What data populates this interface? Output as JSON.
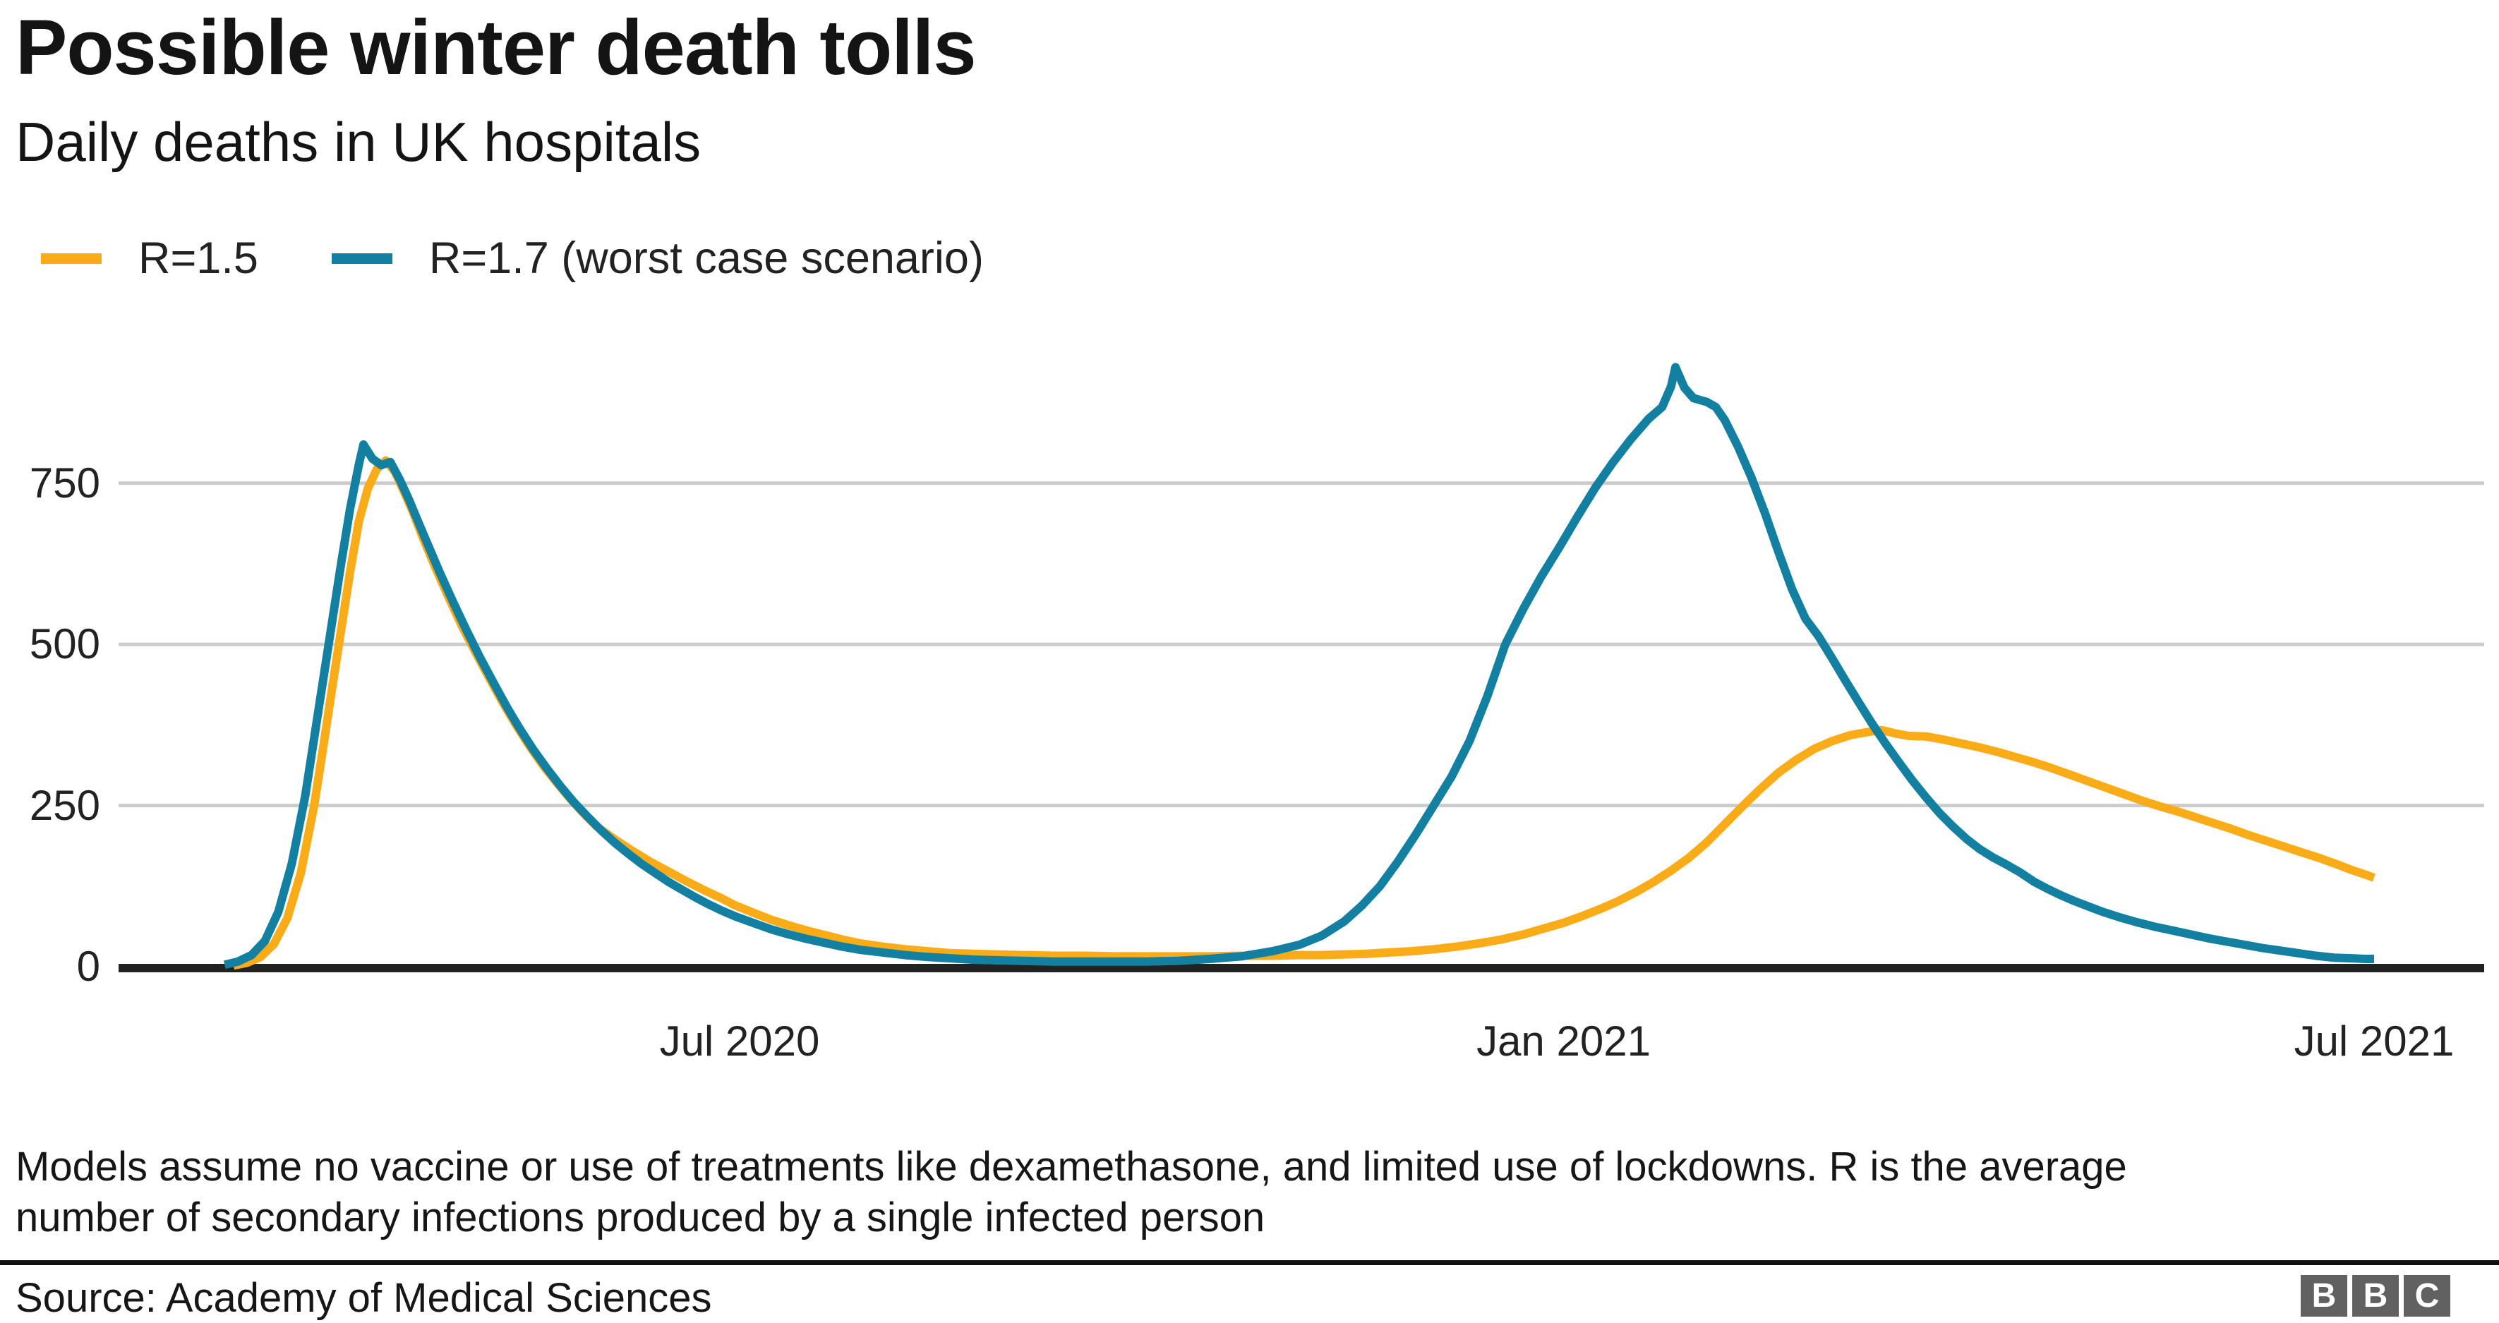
{
  "header": {
    "title": "Possible winter death tolls",
    "subtitle": "Daily deaths in UK hospitals"
  },
  "legend": [
    {
      "label": "R=1.5",
      "color": "#FAAB18"
    },
    {
      "label": "R=1.7 (worst case scenario)",
      "color": "#1380A1"
    }
  ],
  "footnote": {
    "line1": "Models assume no vaccine or use of treatments like dexamethasone, and limited use of lockdowns. R is the average",
    "line2": "number of secondary infections produced by a single infected person"
  },
  "source": {
    "label": "Source: Academy of Medical Sciences"
  },
  "logo": {
    "letters": [
      "B",
      "B",
      "C"
    ]
  },
  "colors": {
    "grid": "#cccccc",
    "axis": "#222222",
    "text": "#222222",
    "logo_background": "#616161"
  },
  "chart_data": {
    "type": "line",
    "title": "Possible winter death tolls",
    "subtitle": "Daily deaths in UK hospitals",
    "xlabel": "",
    "ylabel": "",
    "ylim": [
      0,
      950
    ],
    "yticks": [
      0,
      250,
      500,
      750
    ],
    "xticks": [
      {
        "date": "2020-07-01",
        "label": "Jul 2020"
      },
      {
        "date": "2021-01-01",
        "label": "Jan 2021"
      },
      {
        "date": "2021-07-01",
        "label": "Jul 2021"
      }
    ],
    "grid": "horizontal",
    "legend_position": "top-left",
    "series": [
      {
        "name": "R=1.5",
        "color": "#FAAB18",
        "points": [
          [
            "2020-03-10",
            2
          ],
          [
            "2020-03-13",
            6
          ],
          [
            "2020-03-16",
            15
          ],
          [
            "2020-03-19",
            35
          ],
          [
            "2020-03-22",
            75
          ],
          [
            "2020-03-25",
            145
          ],
          [
            "2020-03-28",
            250
          ],
          [
            "2020-03-30",
            340
          ],
          [
            "2020-04-01",
            432
          ],
          [
            "2020-04-03",
            522
          ],
          [
            "2020-04-05",
            612
          ],
          [
            "2020-04-07",
            692
          ],
          [
            "2020-04-09",
            742
          ],
          [
            "2020-04-11",
            772
          ],
          [
            "2020-04-13",
            785
          ],
          [
            "2020-04-15",
            768
          ],
          [
            "2020-04-17",
            738
          ],
          [
            "2020-04-19",
            706
          ],
          [
            "2020-04-21",
            670
          ],
          [
            "2020-04-24",
            620
          ],
          [
            "2020-04-27",
            573
          ],
          [
            "2020-04-30",
            528
          ],
          [
            "2020-05-03",
            488
          ],
          [
            "2020-05-06",
            449
          ],
          [
            "2020-05-09",
            411
          ],
          [
            "2020-05-12",
            376
          ],
          [
            "2020-05-15",
            343
          ],
          [
            "2020-05-18",
            313
          ],
          [
            "2020-05-21",
            287
          ],
          [
            "2020-05-24",
            262
          ],
          [
            "2020-05-27",
            239
          ],
          [
            "2020-05-30",
            218
          ],
          [
            "2020-06-03",
            198
          ],
          [
            "2020-06-07",
            180
          ],
          [
            "2020-06-11",
            163
          ],
          [
            "2020-06-15",
            148
          ],
          [
            "2020-06-19",
            133
          ],
          [
            "2020-06-23",
            119
          ],
          [
            "2020-06-27",
            106
          ],
          [
            "2020-06-30",
            95
          ],
          [
            "2020-07-04",
            84
          ],
          [
            "2020-07-08",
            73
          ],
          [
            "2020-07-12",
            64
          ],
          [
            "2020-07-16",
            56
          ],
          [
            "2020-07-20",
            49
          ],
          [
            "2020-07-24",
            42
          ],
          [
            "2020-07-28",
            36
          ],
          [
            "2020-08-02",
            31
          ],
          [
            "2020-08-07",
            27
          ],
          [
            "2020-08-12",
            24
          ],
          [
            "2020-08-17",
            21
          ],
          [
            "2020-08-22",
            20
          ],
          [
            "2020-08-27",
            19
          ],
          [
            "2020-09-02",
            18
          ],
          [
            "2020-09-09",
            17
          ],
          [
            "2020-09-16",
            17
          ],
          [
            "2020-09-23",
            16
          ],
          [
            "2020-09-30",
            16
          ],
          [
            "2020-10-07",
            16
          ],
          [
            "2020-10-14",
            16
          ],
          [
            "2020-10-21",
            17
          ],
          [
            "2020-10-28",
            17
          ],
          [
            "2020-11-03",
            18
          ],
          [
            "2020-11-08",
            18
          ],
          [
            "2020-11-13",
            19
          ],
          [
            "2020-11-18",
            20
          ],
          [
            "2020-11-23",
            22
          ],
          [
            "2020-11-28",
            24
          ],
          [
            "2020-12-03",
            27
          ],
          [
            "2020-12-08",
            31
          ],
          [
            "2020-12-13",
            36
          ],
          [
            "2020-12-18",
            42
          ],
          [
            "2020-12-23",
            50
          ],
          [
            "2020-12-28",
            60
          ],
          [
            "2021-01-01",
            68
          ],
          [
            "2021-01-05",
            78
          ],
          [
            "2021-01-09",
            89
          ],
          [
            "2021-01-13",
            101
          ],
          [
            "2021-01-17",
            115
          ],
          [
            "2021-01-21",
            131
          ],
          [
            "2021-01-25",
            149
          ],
          [
            "2021-01-29",
            169
          ],
          [
            "2021-02-02",
            193
          ],
          [
            "2021-02-06",
            221
          ],
          [
            "2021-02-10",
            249
          ],
          [
            "2021-02-14",
            276
          ],
          [
            "2021-02-18",
            301
          ],
          [
            "2021-02-22",
            321
          ],
          [
            "2021-02-26",
            338
          ],
          [
            "2021-03-02",
            350
          ],
          [
            "2021-03-06",
            359
          ],
          [
            "2021-03-10",
            364
          ],
          [
            "2021-03-13",
            367
          ],
          [
            "2021-03-16",
            362
          ],
          [
            "2021-03-19",
            358
          ],
          [
            "2021-03-23",
            357
          ],
          [
            "2021-03-27",
            352
          ],
          [
            "2021-03-31",
            346
          ],
          [
            "2021-04-04",
            340
          ],
          [
            "2021-04-08",
            333
          ],
          [
            "2021-04-12",
            325
          ],
          [
            "2021-04-16",
            317
          ],
          [
            "2021-04-20",
            308
          ],
          [
            "2021-04-24",
            298
          ],
          [
            "2021-04-28",
            288
          ],
          [
            "2021-05-02",
            278
          ],
          [
            "2021-05-06",
            268
          ],
          [
            "2021-05-10",
            258
          ],
          [
            "2021-05-14",
            249
          ],
          [
            "2021-05-18",
            241
          ],
          [
            "2021-05-22",
            232
          ],
          [
            "2021-05-26",
            223
          ],
          [
            "2021-05-30",
            214
          ],
          [
            "2021-06-03",
            204
          ],
          [
            "2021-06-07",
            195
          ],
          [
            "2021-06-11",
            186
          ],
          [
            "2021-06-15",
            177
          ],
          [
            "2021-06-19",
            168
          ],
          [
            "2021-06-23",
            158
          ],
          [
            "2021-06-26",
            150
          ],
          [
            "2021-06-29",
            143
          ],
          [
            "2021-07-01",
            138
          ]
        ]
      },
      {
        "name": "R=1.7 (worst case scenario)",
        "color": "#1380A1",
        "points": [
          [
            "2020-03-08",
            3
          ],
          [
            "2020-03-11",
            8
          ],
          [
            "2020-03-14",
            18
          ],
          [
            "2020-03-17",
            40
          ],
          [
            "2020-03-20",
            85
          ],
          [
            "2020-03-23",
            160
          ],
          [
            "2020-03-26",
            265
          ],
          [
            "2020-03-28",
            355
          ],
          [
            "2020-03-30",
            445
          ],
          [
            "2020-04-01",
            535
          ],
          [
            "2020-04-03",
            625
          ],
          [
            "2020-04-05",
            710
          ],
          [
            "2020-04-07",
            780
          ],
          [
            "2020-04-08",
            810
          ],
          [
            "2020-04-10",
            788
          ],
          [
            "2020-04-12",
            778
          ],
          [
            "2020-04-14",
            783
          ],
          [
            "2020-04-16",
            757
          ],
          [
            "2020-04-18",
            727
          ],
          [
            "2020-04-20",
            694
          ],
          [
            "2020-04-22",
            661
          ],
          [
            "2020-04-25",
            612
          ],
          [
            "2020-04-28",
            566
          ],
          [
            "2020-05-01",
            522
          ],
          [
            "2020-05-04",
            480
          ],
          [
            "2020-05-07",
            441
          ],
          [
            "2020-05-10",
            403
          ],
          [
            "2020-05-13",
            368
          ],
          [
            "2020-05-16",
            336
          ],
          [
            "2020-05-19",
            307
          ],
          [
            "2020-05-22",
            280
          ],
          [
            "2020-05-25",
            255
          ],
          [
            "2020-05-28",
            233
          ],
          [
            "2020-05-31",
            212
          ],
          [
            "2020-06-03",
            193
          ],
          [
            "2020-06-06",
            176
          ],
          [
            "2020-06-09",
            160
          ],
          [
            "2020-06-12",
            146
          ],
          [
            "2020-06-15",
            132
          ],
          [
            "2020-06-18",
            120
          ],
          [
            "2020-06-21",
            108
          ],
          [
            "2020-06-24",
            97
          ],
          [
            "2020-06-27",
            87
          ],
          [
            "2020-06-30",
            78
          ],
          [
            "2020-07-04",
            68
          ],
          [
            "2020-07-08",
            58
          ],
          [
            "2020-07-12",
            50
          ],
          [
            "2020-07-16",
            43
          ],
          [
            "2020-07-20",
            37
          ],
          [
            "2020-07-24",
            31
          ],
          [
            "2020-07-28",
            26
          ],
          [
            "2020-08-02",
            22
          ],
          [
            "2020-08-07",
            18
          ],
          [
            "2020-08-12",
            15
          ],
          [
            "2020-08-17",
            13
          ],
          [
            "2020-08-22",
            11
          ],
          [
            "2020-08-27",
            10
          ],
          [
            "2020-09-02",
            9
          ],
          [
            "2020-09-09",
            8
          ],
          [
            "2020-09-16",
            8
          ],
          [
            "2020-09-23",
            8
          ],
          [
            "2020-09-30",
            8
          ],
          [
            "2020-10-07",
            9
          ],
          [
            "2020-10-14",
            12
          ],
          [
            "2020-10-21",
            16
          ],
          [
            "2020-10-28",
            24
          ],
          [
            "2020-11-03",
            34
          ],
          [
            "2020-11-08",
            48
          ],
          [
            "2020-11-13",
            70
          ],
          [
            "2020-11-17",
            95
          ],
          [
            "2020-11-21",
            125
          ],
          [
            "2020-11-25",
            163
          ],
          [
            "2020-11-29",
            205
          ],
          [
            "2020-12-03",
            250
          ],
          [
            "2020-12-07",
            295
          ],
          [
            "2020-12-11",
            350
          ],
          [
            "2020-12-15",
            420
          ],
          [
            "2020-12-19",
            500
          ],
          [
            "2020-12-23",
            555
          ],
          [
            "2020-12-27",
            605
          ],
          [
            "2020-12-31",
            650
          ],
          [
            "2021-01-04",
            697
          ],
          [
            "2021-01-08",
            742
          ],
          [
            "2021-01-12",
            782
          ],
          [
            "2021-01-16",
            818
          ],
          [
            "2021-01-20",
            850
          ],
          [
            "2021-01-23",
            868
          ],
          [
            "2021-01-25",
            900
          ],
          [
            "2021-01-26",
            930
          ],
          [
            "2021-01-28",
            898
          ],
          [
            "2021-01-30",
            882
          ],
          [
            "2021-02-02",
            876
          ],
          [
            "2021-02-04",
            868
          ],
          [
            "2021-02-06",
            848
          ],
          [
            "2021-02-09",
            806
          ],
          [
            "2021-02-12",
            758
          ],
          [
            "2021-02-15",
            703
          ],
          [
            "2021-02-18",
            643
          ],
          [
            "2021-02-21",
            586
          ],
          [
            "2021-02-24",
            540
          ],
          [
            "2021-02-27",
            512
          ],
          [
            "2021-03-02",
            478
          ],
          [
            "2021-03-05",
            443
          ],
          [
            "2021-03-08",
            409
          ],
          [
            "2021-03-11",
            376
          ],
          [
            "2021-03-14",
            345
          ],
          [
            "2021-03-17",
            316
          ],
          [
            "2021-03-20",
            288
          ],
          [
            "2021-03-23",
            262
          ],
          [
            "2021-03-26",
            238
          ],
          [
            "2021-03-29",
            217
          ],
          [
            "2021-04-01",
            198
          ],
          [
            "2021-04-04",
            182
          ],
          [
            "2021-04-07",
            169
          ],
          [
            "2021-04-10",
            158
          ],
          [
            "2021-04-13",
            146
          ],
          [
            "2021-04-16",
            132
          ],
          [
            "2021-04-19",
            121
          ],
          [
            "2021-04-22",
            111
          ],
          [
            "2021-04-25",
            102
          ],
          [
            "2021-04-28",
            94
          ],
          [
            "2021-05-01",
            86
          ],
          [
            "2021-05-05",
            77
          ],
          [
            "2021-05-09",
            69
          ],
          [
            "2021-05-13",
            62
          ],
          [
            "2021-05-17",
            56
          ],
          [
            "2021-05-21",
            50
          ],
          [
            "2021-05-25",
            44
          ],
          [
            "2021-05-29",
            39
          ],
          [
            "2021-06-02",
            34
          ],
          [
            "2021-06-06",
            29
          ],
          [
            "2021-06-10",
            25
          ],
          [
            "2021-06-14",
            21
          ],
          [
            "2021-06-18",
            17
          ],
          [
            "2021-06-22",
            14
          ],
          [
            "2021-06-26",
            13
          ],
          [
            "2021-06-29",
            12
          ],
          [
            "2021-07-01",
            12
          ]
        ]
      }
    ]
  }
}
